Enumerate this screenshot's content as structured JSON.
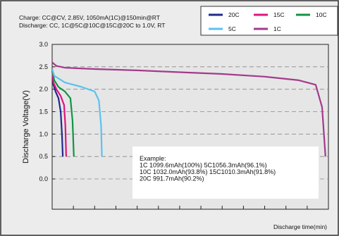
{
  "chart_data": {
    "type": "line",
    "conditions": [
      "Charge: CC@CV, 2.85V, 1050mA(1C)@150min@RT",
      "Discharge: CC, 1C@5C@10C@15C@20C to 1.0V, RT"
    ],
    "ylabel": "Discharge Voltage(V)",
    "xlabel": "Discharge time(min)",
    "ylim": [
      0,
      3.0
    ],
    "yticks": [
      "3.0",
      "2.5",
      "2.0",
      "1.5",
      "1.0",
      "0.5",
      "0.0"
    ],
    "xlim": [
      0,
      65
    ],
    "grid": "horizontal dashed",
    "legend_position": "top-right",
    "series": [
      {
        "name": "20C",
        "color": "#1f2a8c",
        "points": [
          [
            0,
            2.45
          ],
          [
            0.3,
            2.1
          ],
          [
            0.8,
            1.95
          ],
          [
            1.5,
            1.8
          ],
          [
            2.0,
            1.5
          ],
          [
            2.3,
            1.0
          ],
          [
            2.5,
            0.5
          ]
        ]
      },
      {
        "name": "15C",
        "color": "#e0147e",
        "points": [
          [
            0,
            2.45
          ],
          [
            0.3,
            2.15
          ],
          [
            1.0,
            2.0
          ],
          [
            2.0,
            1.85
          ],
          [
            2.8,
            1.65
          ],
          [
            3.1,
            1.2
          ],
          [
            3.3,
            0.5
          ]
        ]
      },
      {
        "name": "10C",
        "color": "#129446",
        "points": [
          [
            0,
            2.45
          ],
          [
            0.5,
            2.2
          ],
          [
            1.5,
            2.05
          ],
          [
            3.0,
            1.95
          ],
          [
            4.3,
            1.8
          ],
          [
            4.8,
            1.3
          ],
          [
            5.1,
            0.5
          ]
        ]
      },
      {
        "name": "5C",
        "color": "#5bc2ef",
        "points": [
          [
            0,
            2.45
          ],
          [
            0.5,
            2.3
          ],
          [
            3.0,
            2.15
          ],
          [
            7.0,
            2.05
          ],
          [
            10.0,
            1.95
          ],
          [
            11.0,
            1.75
          ],
          [
            11.5,
            1.2
          ],
          [
            11.7,
            0.5
          ]
        ]
      },
      {
        "name": "1C",
        "color": "#a33a8c",
        "points": [
          [
            0,
            2.6
          ],
          [
            1.0,
            2.52
          ],
          [
            3.0,
            2.48
          ],
          [
            10.0,
            2.45
          ],
          [
            20.0,
            2.42
          ],
          [
            30.0,
            2.38
          ],
          [
            40.0,
            2.34
          ],
          [
            50.0,
            2.28
          ],
          [
            58.0,
            2.2
          ],
          [
            62.0,
            2.1
          ],
          [
            63.5,
            1.6
          ],
          [
            64.3,
            0.5
          ]
        ]
      }
    ],
    "annotation": {
      "lines": [
        "Example:",
        "1C 1099.6mAh(100%)  5C1056.3mAh(96.1%)",
        "10C 1032.0mAh(93.8%) 15C1010.3mAh(91.8%)",
        "20C 991.7mAh(90.2%)"
      ]
    }
  }
}
